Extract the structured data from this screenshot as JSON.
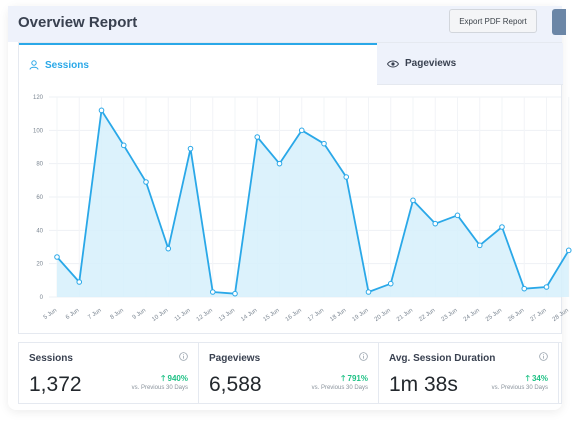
{
  "header": {
    "title": "Overview Report",
    "export_button": "Export PDF Report"
  },
  "tabs": [
    {
      "label": "Sessions",
      "icon": "user-icon",
      "active": true
    },
    {
      "label": "Pageviews",
      "icon": "eye-icon",
      "active": false
    }
  ],
  "colors": {
    "accent": "#2aa8e8",
    "area_fill": "#d6f0fc",
    "positive": "#1ec185"
  },
  "chart_data": {
    "type": "area",
    "x": [
      "5 Jun",
      "6 Jun",
      "7 Jun",
      "8 Jun",
      "9 Jun",
      "10 Jun",
      "11 Jun",
      "12 Jun",
      "13 Jun",
      "14 Jun",
      "15 Jun",
      "16 Jun",
      "17 Jun",
      "18 Jun",
      "19 Jun",
      "20 Jun",
      "21 Jun",
      "22 Jun",
      "23 Jun",
      "24 Jun",
      "25 Jun",
      "26 Jun",
      "27 Jun",
      "28 Jun"
    ],
    "series": [
      {
        "values": [
          24,
          9,
          112,
          91,
          69,
          29,
          89,
          3,
          2,
          96,
          80,
          100,
          92,
          72,
          3,
          8,
          58,
          44,
          49,
          31,
          42,
          5,
          6,
          28
        ]
      }
    ],
    "yticks": [
      0,
      20,
      40,
      60,
      80,
      100,
      120
    ],
    "ylim": [
      0,
      120
    ],
    "grid": true
  },
  "stats": [
    {
      "label": "Sessions",
      "value": "1,372",
      "change": "940%",
      "compare": "vs. Previous 30 Days"
    },
    {
      "label": "Pageviews",
      "value": "6,588",
      "change": "791%",
      "compare": "vs. Previous 30 Days"
    },
    {
      "label": "Avg. Session Duration",
      "value": "1m 38s",
      "change": "34%",
      "compare": "vs. Previous 30 Days"
    }
  ]
}
